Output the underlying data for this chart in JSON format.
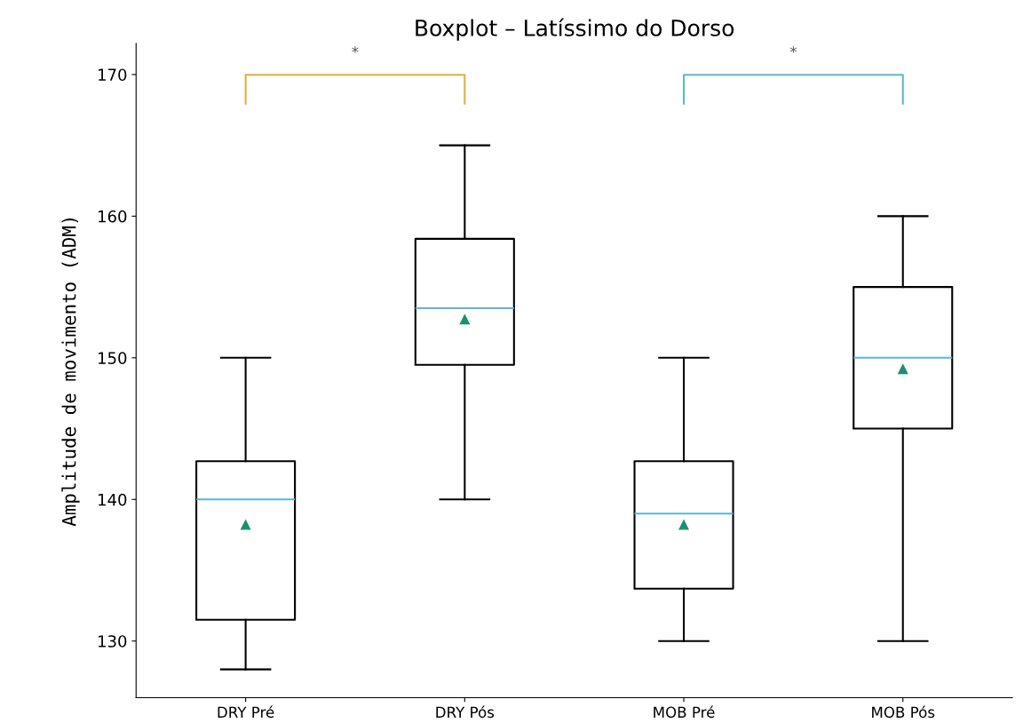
{
  "chart_data": {
    "type": "box",
    "title": "Boxplot – Latíssimo do Dorso",
    "ylabel": "Amplitude de movimento (ADM)",
    "categories": [
      "DRY Pré",
      "DRY Pós",
      "MOB Pré",
      "MOB Pós"
    ],
    "boxes": [
      {
        "low": 128,
        "q1": 131.5,
        "median": 140,
        "q3": 142.7,
        "high": 150,
        "mean": 138.2
      },
      {
        "low": 140,
        "q1": 149.5,
        "median": 153.5,
        "q3": 158.4,
        "high": 165,
        "mean": 152.7
      },
      {
        "low": 130,
        "q1": 133.7,
        "median": 139,
        "q3": 142.7,
        "high": 150,
        "mean": 138.2
      },
      {
        "low": 130,
        "q1": 145,
        "median": 150,
        "q3": 155,
        "high": 160,
        "mean": 149.2
      }
    ],
    "ylim": [
      126,
      172.2
    ],
    "yticks": [
      130,
      140,
      150,
      160,
      170
    ],
    "annotations": [
      "*",
      "*"
    ],
    "grid": false
  }
}
